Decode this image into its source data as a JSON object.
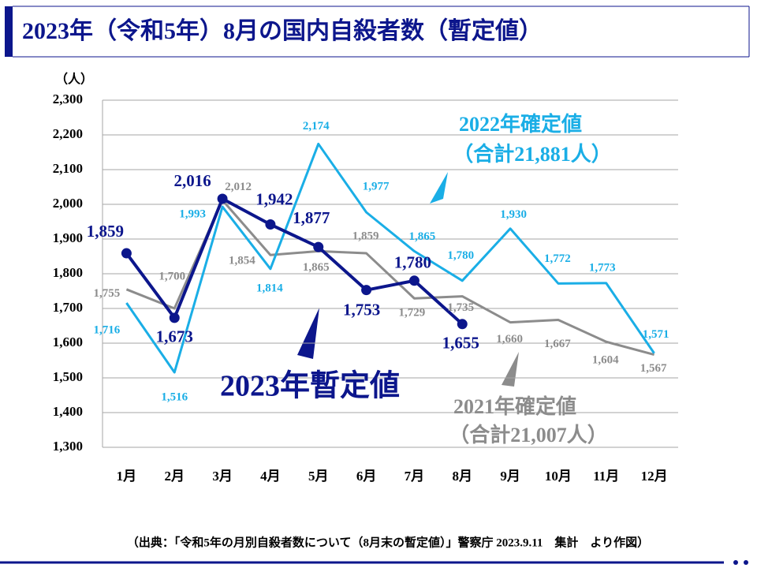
{
  "chart_data": {
    "type": "line",
    "title": "2023年（令和5年）8月の国内自殺者数（暫定値）",
    "y_axis_label": "（人）",
    "categories": [
      "1月",
      "2月",
      "3月",
      "4月",
      "5月",
      "6月",
      "7月",
      "8月",
      "9月",
      "10月",
      "11月",
      "12月"
    ],
    "ylim": [
      1300,
      2300
    ],
    "yticks": [
      {
        "value": 1300,
        "label": "1,300"
      },
      {
        "value": 1400,
        "label": "1,400"
      },
      {
        "value": 1500,
        "label": "1,500"
      },
      {
        "value": 1600,
        "label": "1,600"
      },
      {
        "value": 1700,
        "label": "1,700"
      },
      {
        "value": 1800,
        "label": "1,800"
      },
      {
        "value": 1900,
        "label": "1,900"
      },
      {
        "value": 2000,
        "label": "2,000"
      },
      {
        "value": 2100,
        "label": "2,100"
      },
      {
        "value": 2200,
        "label": "2,200"
      },
      {
        "value": 2300,
        "label": "2,300"
      }
    ],
    "grid": true,
    "series": [
      {
        "name": "2021年確定値",
        "total_label": "（合計21,007人）",
        "color": "#8c8c8c",
        "values": [
          1755,
          1700,
          2012,
          1854,
          1865,
          1859,
          1729,
          1735,
          1660,
          1667,
          1604,
          1567
        ],
        "value_labels": [
          "1,755",
          "1,700",
          "2,012",
          "1,854",
          "1,865",
          "1,859",
          "1,729",
          "1,735",
          "1,660",
          "1,667",
          "1,604",
          "1,567"
        ]
      },
      {
        "name": "2022年確定値",
        "total_label": "（合計21,881人）",
        "color": "#1aaee6",
        "values": [
          1716,
          1516,
          1993,
          1814,
          2174,
          1977,
          1865,
          1780,
          1930,
          1772,
          1773,
          1571
        ],
        "value_labels": [
          "1,716",
          "1,516",
          "1,993",
          "1,814",
          "2,174",
          "1,977",
          "1,865",
          "1,780",
          "1,930",
          "1,772",
          "1,773",
          "1,571"
        ]
      },
      {
        "name": "2023年暫定値",
        "color": "#0c168c",
        "markers": true,
        "values": [
          1859,
          1673,
          2016,
          1942,
          1877,
          1753,
          1780,
          1655,
          null,
          null,
          null,
          null
        ],
        "value_labels": [
          "1,859",
          "1,673",
          "2,016",
          "1,942",
          "1,877",
          "1,753",
          "1,780",
          "1,655",
          null,
          null,
          null,
          null
        ]
      }
    ],
    "source": "（出典：「令和5年の月別自殺者数について（8月末の暫定値）」警察庁 2023.9.11　集計　より作図）"
  }
}
